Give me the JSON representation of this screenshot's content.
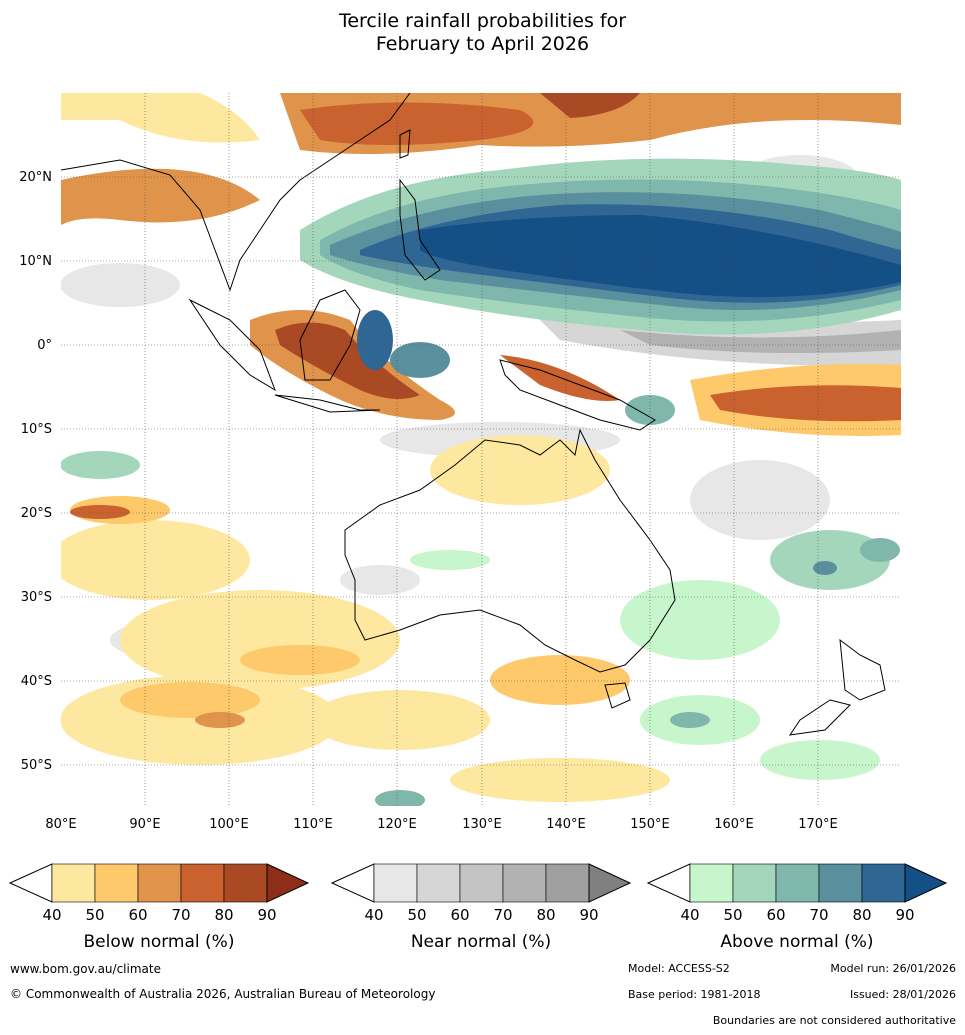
{
  "title": {
    "line1": "Tercile rainfall probabilities for",
    "line2": "February to April 2026"
  },
  "map": {
    "lon_labels": [
      "80°E",
      "90°E",
      "100°E",
      "110°E",
      "120°E",
      "130°E",
      "140°E",
      "150°E",
      "160°E",
      "170°E"
    ],
    "lat_labels": [
      "20°N",
      "10°N",
      "0°",
      "10°S",
      "20°S",
      "30°S",
      "40°S",
      "50°S"
    ]
  },
  "colorbars": [
    {
      "label": "Below normal (%)",
      "ticks": [
        "40",
        "50",
        "60",
        "70",
        "80",
        "90"
      ],
      "colors": [
        "#ffffff",
        "#fee8a0",
        "#fdc96a",
        "#e0934a",
        "#c9622f",
        "#a94a25",
        "#8e2e18"
      ]
    },
    {
      "label": "Near normal (%)",
      "ticks": [
        "40",
        "50",
        "60",
        "70",
        "80",
        "90"
      ],
      "colors": [
        "#ffffff",
        "#e7e7e7",
        "#d6d6d6",
        "#c4c4c4",
        "#b2b2b2",
        "#a0a0a0",
        "#808080"
      ]
    },
    {
      "label": "Above normal (%)",
      "ticks": [
        "40",
        "50",
        "60",
        "70",
        "80",
        "90"
      ],
      "colors": [
        "#ffffff",
        "#c7f5cc",
        "#a4d6bc",
        "#7fb7ad",
        "#5a909e",
        "#2f6694",
        "#144f86"
      ]
    }
  ],
  "footer": {
    "website": "www.bom.gov.au/climate",
    "copyright": "© Commonwealth of Australia 2026, Australian Bureau of Meteorology",
    "model": "Model: ACCESS-S2",
    "model_run": "Model run: 26/01/2026",
    "base_period": "Base period: 1981-2018",
    "issued": "Issued: 28/01/2026",
    "disclaimer": "Boundaries are not considered authoritative"
  }
}
